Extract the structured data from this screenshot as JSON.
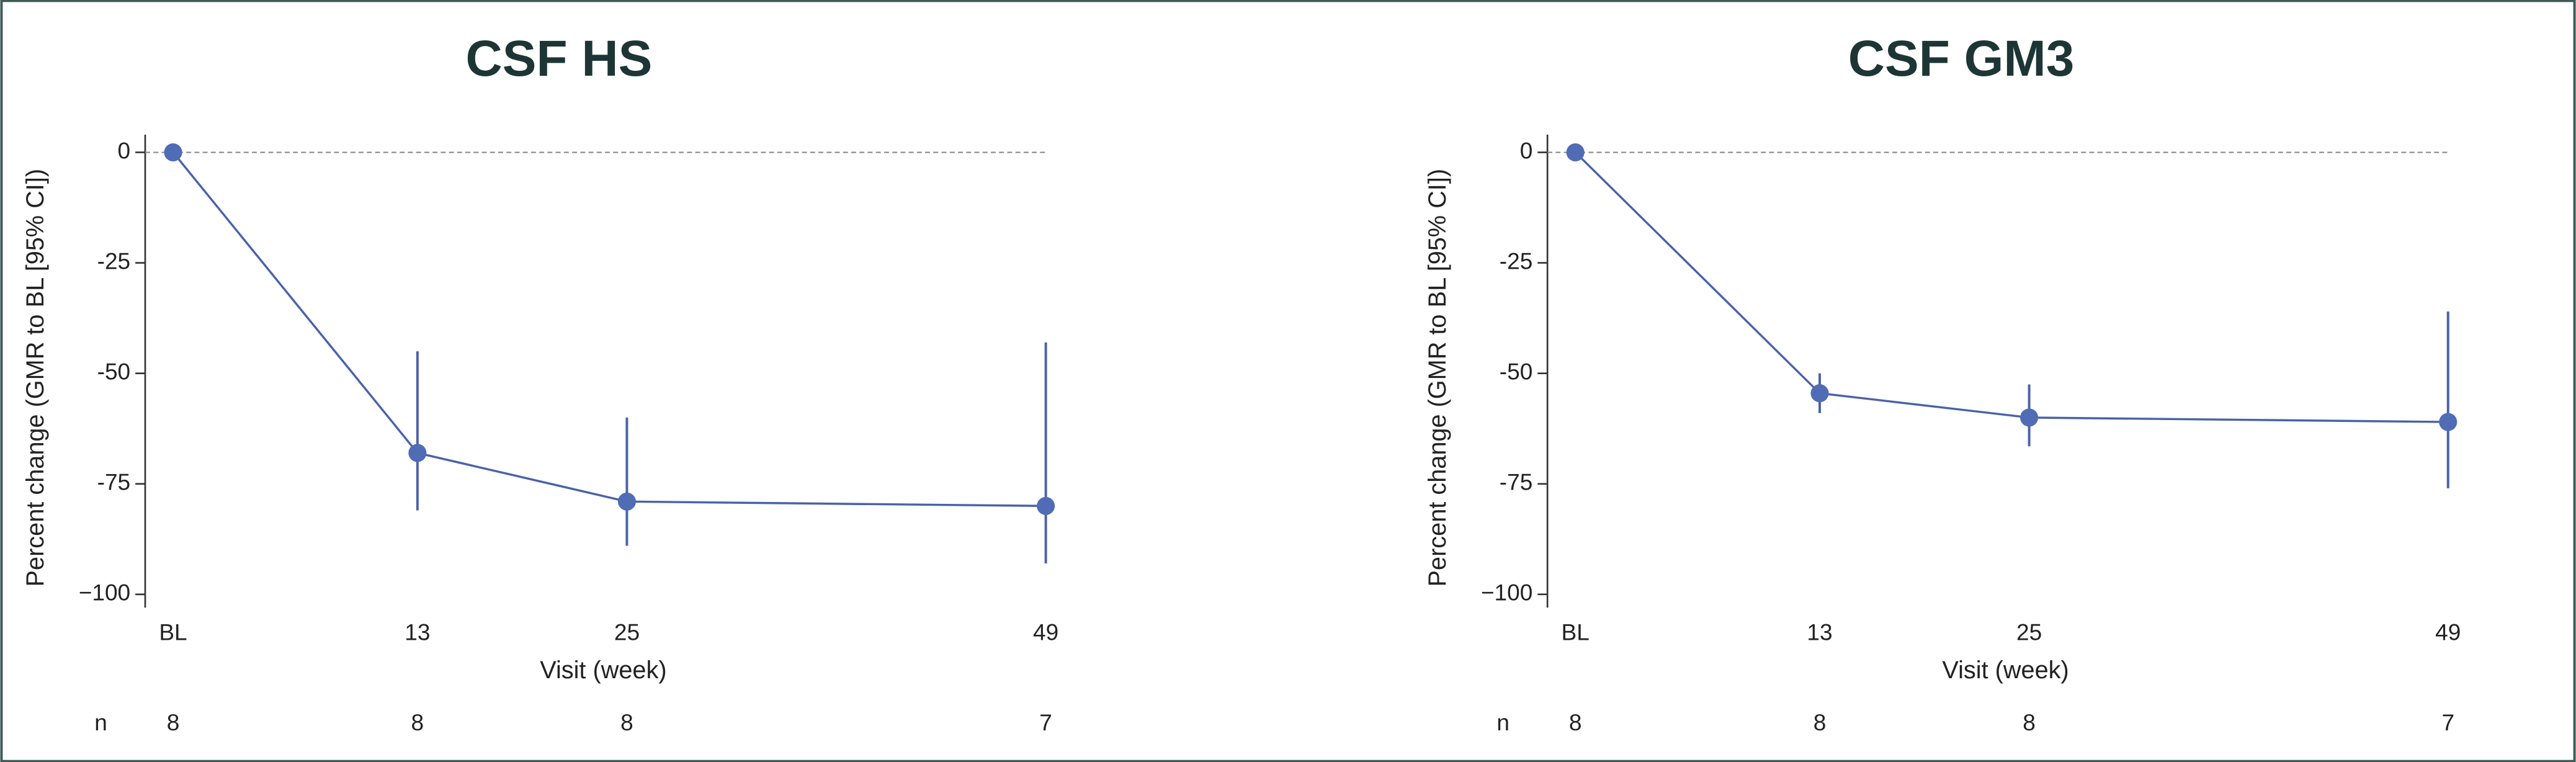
{
  "chart_data": [
    {
      "type": "line",
      "title": "CSF HS",
      "x": [
        -1,
        13,
        25,
        49
      ],
      "series": [
        {
          "color": "#4a62a8",
          "values": [
            0,
            -68,
            -79,
            -80
          ],
          "ci_lower": [
            0,
            -81,
            -89,
            -93
          ],
          "ci_upper": [
            0,
            -45,
            -60,
            -43
          ]
        }
      ],
      "xlabel": "Visit (week)",
      "ylabel": "Percent change (GMR to BL [95% CI])",
      "xlim": [
        -2.6,
        49.8
      ],
      "xticks": [
        {
          "value": -1,
          "label": "BL"
        },
        13,
        25,
        49
      ],
      "ylim": [
        -103,
        4
      ],
      "yticks": [
        0,
        -25,
        -50,
        -75,
        {
          "value": -100,
          "label": "−100"
        }
      ],
      "hline": 0,
      "n_label": "n",
      "n_values": [
        8,
        8,
        8,
        7
      ]
    },
    {
      "type": "line",
      "title": "CSF GM3",
      "x": [
        -1,
        13,
        25,
        49
      ],
      "series": [
        {
          "color": "#4a62a8",
          "values": [
            0,
            -54.5,
            -60,
            -61
          ],
          "ci_lower": [
            0,
            -59,
            -66.5,
            -76
          ],
          "ci_upper": [
            0,
            -50,
            -52.5,
            -36
          ]
        }
      ],
      "xlabel": "Visit (week)",
      "ylabel": "Percent change (GMR to BL [95% CI])",
      "xlim": [
        -2.6,
        49.8
      ],
      "xticks": [
        {
          "value": -1,
          "label": "BL"
        },
        13,
        25,
        49
      ],
      "ylim": [
        -103,
        4
      ],
      "yticks": [
        0,
        -25,
        -50,
        -75,
        {
          "value": -100,
          "label": "−100"
        }
      ],
      "hline": 0,
      "n_label": "n",
      "n_values": [
        8,
        8,
        8,
        7
      ]
    }
  ]
}
